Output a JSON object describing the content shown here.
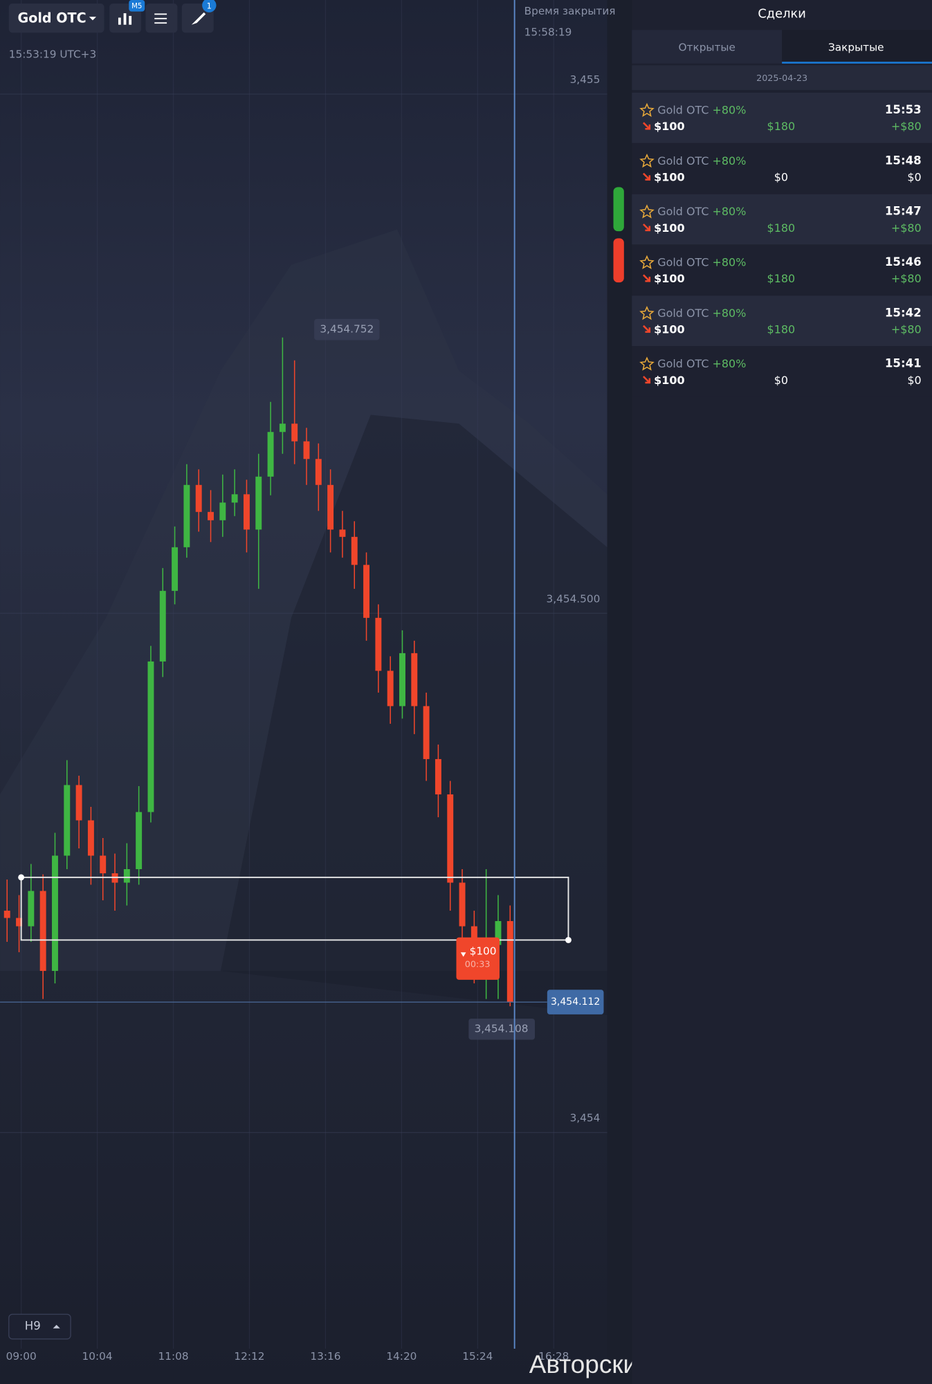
{
  "toolbar": {
    "asset": "Gold OTC",
    "timeframe_badge": "M5",
    "drawings_badge": "1",
    "clock": "15:53:19 UTC+3"
  },
  "expiry": {
    "title": "Время закрытия",
    "time": "15:58:19"
  },
  "chart_data": {
    "type": "candlestick",
    "up_color": "#3fb643",
    "down_color": "#f0462b",
    "grid": true,
    "ylim": [
      3453.785,
      3455.077
    ],
    "yticks": [
      {
        "value": 3455,
        "label": "3,455"
      },
      {
        "value": 3454.5,
        "label": "3,454.500"
      },
      {
        "value": 3454,
        "label": "3,454"
      }
    ],
    "xticks": [
      "09:00",
      "10:04",
      "11:08",
      "12:12",
      "13:16",
      "14:20",
      "15:24",
      "16:28"
    ],
    "max_label": {
      "value": 3454.752,
      "label": "3,454.752"
    },
    "current_price": {
      "value": 3454.112,
      "label": "3,454.112"
    },
    "cursor_price": {
      "value": 3454.108,
      "label": "3,454.108"
    },
    "trade_marker": {
      "amount": "$100",
      "timer": "00:33"
    },
    "candles": [
      {
        "o": 3454.2,
        "h": 3454.23,
        "l": 3454.17,
        "c": 3454.193
      },
      {
        "o": 3454.193,
        "h": 3454.215,
        "l": 3454.16,
        "c": 3454.185
      },
      {
        "o": 3454.185,
        "h": 3454.245,
        "l": 3454.17,
        "c": 3454.219
      },
      {
        "o": 3454.219,
        "h": 3454.235,
        "l": 3454.115,
        "c": 3454.142
      },
      {
        "o": 3454.142,
        "h": 3454.275,
        "l": 3454.13,
        "c": 3454.253
      },
      {
        "o": 3454.253,
        "h": 3454.345,
        "l": 3454.24,
        "c": 3454.321
      },
      {
        "o": 3454.321,
        "h": 3454.33,
        "l": 3454.26,
        "c": 3454.287
      },
      {
        "o": 3454.287,
        "h": 3454.3,
        "l": 3454.225,
        "c": 3454.253
      },
      {
        "o": 3454.253,
        "h": 3454.27,
        "l": 3454.21,
        "c": 3454.236
      },
      {
        "o": 3454.236,
        "h": 3454.255,
        "l": 3454.2,
        "c": 3454.227
      },
      {
        "o": 3454.227,
        "h": 3454.265,
        "l": 3454.205,
        "c": 3454.24
      },
      {
        "o": 3454.24,
        "h": 3454.32,
        "l": 3454.225,
        "c": 3454.295
      },
      {
        "o": 3454.295,
        "h": 3454.455,
        "l": 3454.285,
        "c": 3454.44
      },
      {
        "o": 3454.44,
        "h": 3454.53,
        "l": 3454.425,
        "c": 3454.508
      },
      {
        "o": 3454.508,
        "h": 3454.57,
        "l": 3454.495,
        "c": 3454.55
      },
      {
        "o": 3454.55,
        "h": 3454.63,
        "l": 3454.54,
        "c": 3454.61
      },
      {
        "o": 3454.61,
        "h": 3454.625,
        "l": 3454.565,
        "c": 3454.584
      },
      {
        "o": 3454.584,
        "h": 3454.605,
        "l": 3454.555,
        "c": 3454.576
      },
      {
        "o": 3454.576,
        "h": 3454.62,
        "l": 3454.56,
        "c": 3454.593
      },
      {
        "o": 3454.593,
        "h": 3454.625,
        "l": 3454.58,
        "c": 3454.601
      },
      {
        "o": 3454.601,
        "h": 3454.615,
        "l": 3454.545,
        "c": 3454.567
      },
      {
        "o": 3454.567,
        "h": 3454.64,
        "l": 3454.51,
        "c": 3454.618
      },
      {
        "o": 3454.618,
        "h": 3454.69,
        "l": 3454.6,
        "c": 3454.661
      },
      {
        "o": 3454.661,
        "h": 3454.752,
        "l": 3454.64,
        "c": 3454.669
      },
      {
        "o": 3454.669,
        "h": 3454.73,
        "l": 3454.63,
        "c": 3454.652
      },
      {
        "o": 3454.652,
        "h": 3454.665,
        "l": 3454.61,
        "c": 3454.635
      },
      {
        "o": 3454.635,
        "h": 3454.65,
        "l": 3454.585,
        "c": 3454.61
      },
      {
        "o": 3454.61,
        "h": 3454.625,
        "l": 3454.545,
        "c": 3454.567
      },
      {
        "o": 3454.567,
        "h": 3454.585,
        "l": 3454.54,
        "c": 3454.56
      },
      {
        "o": 3454.56,
        "h": 3454.575,
        "l": 3454.51,
        "c": 3454.533
      },
      {
        "o": 3454.533,
        "h": 3454.545,
        "l": 3454.46,
        "c": 3454.482
      },
      {
        "o": 3454.482,
        "h": 3454.495,
        "l": 3454.41,
        "c": 3454.431
      },
      {
        "o": 3454.431,
        "h": 3454.445,
        "l": 3454.38,
        "c": 3454.397
      },
      {
        "o": 3454.397,
        "h": 3454.47,
        "l": 3454.385,
        "c": 3454.448
      },
      {
        "o": 3454.448,
        "h": 3454.46,
        "l": 3454.37,
        "c": 3454.397
      },
      {
        "o": 3454.397,
        "h": 3454.41,
        "l": 3454.325,
        "c": 3454.346
      },
      {
        "o": 3454.346,
        "h": 3454.36,
        "l": 3454.29,
        "c": 3454.312
      },
      {
        "o": 3454.312,
        "h": 3454.325,
        "l": 3454.2,
        "c": 3454.227
      },
      {
        "o": 3454.227,
        "h": 3454.24,
        "l": 3454.165,
        "c": 3454.185
      },
      {
        "o": 3454.185,
        "h": 3454.2,
        "l": 3454.13,
        "c": 3454.159
      },
      {
        "o": 3454.159,
        "h": 3454.24,
        "l": 3454.115,
        "c": 3454.167
      },
      {
        "o": 3454.167,
        "h": 3454.215,
        "l": 3454.115,
        "c": 3454.19
      },
      {
        "o": 3454.19,
        "h": 3454.205,
        "l": 3454.108,
        "c": 3454.112
      }
    ]
  },
  "zoom_button": "H9",
  "copyright": "Авторские права © Pocket Option",
  "panel": {
    "title": "Сделки",
    "tabs": [
      "Открытые",
      "Закрытые"
    ],
    "date": "2025-04-23",
    "trades": [
      {
        "asset": "Gold OTC",
        "percent": "+80%",
        "time": "15:53",
        "amount": "$100",
        "payout": "$180",
        "profit": "+$80"
      },
      {
        "asset": "Gold OTC",
        "percent": "+80%",
        "time": "15:48",
        "amount": "$100",
        "payout": "$0",
        "profit": "$0"
      },
      {
        "asset": "Gold OTC",
        "percent": "+80%",
        "time": "15:47",
        "amount": "$100",
        "payout": "$180",
        "profit": "+$80"
      },
      {
        "asset": "Gold OTC",
        "percent": "+80%",
        "time": "15:46",
        "amount": "$100",
        "payout": "$180",
        "profit": "+$80"
      },
      {
        "asset": "Gold OTC",
        "percent": "+80%",
        "time": "15:42",
        "amount": "$100",
        "payout": "$180",
        "profit": "+$80"
      },
      {
        "asset": "Gold OTC",
        "percent": "+80%",
        "time": "15:41",
        "amount": "$100",
        "payout": "$0",
        "profit": "$0"
      }
    ]
  }
}
